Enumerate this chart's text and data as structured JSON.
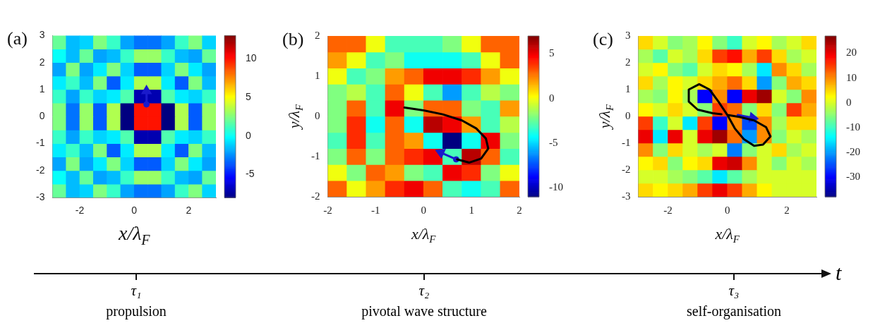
{
  "chart_data": [
    {
      "type": "heatmap",
      "title": "(a)",
      "xlabel": "x/λ$_{F}$",
      "x": [
        -2.75,
        -2.25,
        -1.75,
        -1.25,
        -0.75,
        -0.25,
        0.25,
        0.75,
        1.25,
        1.75,
        2.25,
        2.75
      ],
      "y": [
        2.75,
        2.25,
        1.75,
        1.25,
        0.75,
        0.25,
        -0.25,
        -0.75,
        -1.25,
        -1.75,
        -2.25,
        -2.75
      ],
      "cells": [
        [
          2,
          -1.5,
          -1,
          2.5,
          1,
          -2,
          -3,
          -3,
          -2,
          1,
          2.5,
          -1
        ],
        [
          0,
          -1.5,
          2,
          -2,
          -1.5,
          1,
          3,
          3,
          1,
          -1.5,
          -2,
          2
        ],
        [
          -2,
          2.5,
          -2,
          -0.5,
          2.5,
          -1,
          -3.5,
          -3.5,
          -1,
          2.5,
          -0.5,
          -2
        ],
        [
          -0.5,
          1,
          -1.5,
          2.5,
          -3.5,
          -0.5,
          3.5,
          3.5,
          -0.5,
          -3.5,
          2.5,
          -1.5
        ],
        [
          1,
          -2,
          1,
          -1,
          -0.5,
          1.5,
          -7,
          -7,
          1.5,
          -0.5,
          -1,
          1
        ],
        [
          2.5,
          -3,
          3,
          -3.5,
          3.5,
          -8,
          10,
          10,
          -8,
          3.5,
          -3.5,
          3
        ],
        [
          2.5,
          -3,
          3,
          -3.5,
          3.5,
          -8,
          10,
          10,
          -8,
          3.5,
          -3.5,
          3
        ],
        [
          1,
          -2,
          1,
          -1,
          -0.5,
          1.5,
          -7,
          -7,
          1.5,
          -0.5,
          -1,
          1
        ],
        [
          -0.5,
          1,
          -1.5,
          2.5,
          -3.5,
          -0.5,
          3.5,
          3.5,
          -0.5,
          -3.5,
          2.5,
          -1.5
        ],
        [
          -2,
          2.5,
          -2,
          -0.5,
          2.5,
          -1,
          -3.5,
          -3.5,
          -1,
          2.5,
          -0.5,
          -2
        ],
        [
          0,
          -1.5,
          2,
          -2,
          -1.5,
          1,
          3,
          3,
          1,
          -1.5,
          -2,
          2
        ],
        [
          2,
          -1.5,
          -1,
          2.5,
          1,
          -2,
          -3,
          -3,
          -2,
          1,
          2.5,
          -1
        ]
      ],
      "xlim": [
        -3,
        3
      ],
      "ylim": [
        -3,
        3
      ],
      "xticks": [
        -2,
        0,
        2
      ],
      "yticks": [
        -3,
        -2,
        -1,
        0,
        1,
        2,
        3
      ],
      "clim": [
        -8,
        13
      ],
      "cticks": [
        -5,
        0,
        5,
        10
      ],
      "series": [
        {
          "type": "line",
          "color": "#1a1acc",
          "marker": "triangle",
          "x": [
            0.45,
            0.45
          ],
          "values": [
            0.45,
            0.95
          ]
        },
        {
          "type": "scatter",
          "color": "#1a1acc",
          "marker": "circle",
          "x": [
            0.45
          ],
          "values": [
            0.45
          ]
        }
      ]
    },
    {
      "type": "heatmap",
      "title": "(b)",
      "xlabel": "x/λ$_{F}$",
      "ylabel": "y/λ$_{F}$",
      "x": [
        -1.8,
        -1.4,
        -1,
        -0.6,
        -0.2,
        0.2,
        0.6,
        1,
        1.4,
        1.8
      ],
      "y": [
        1.8,
        1.4,
        1,
        0.6,
        0.2,
        -0.2,
        -0.6,
        -1,
        -1.4,
        -1.8
      ],
      "cells": [
        [
          3,
          3,
          0,
          -3,
          -3,
          -3,
          -2,
          0,
          3,
          3
        ],
        [
          2,
          0,
          -3,
          -2,
          -4,
          -4,
          -4,
          -3,
          0,
          3
        ],
        [
          0,
          -3,
          -2,
          2,
          3,
          5,
          5,
          4,
          2,
          0
        ],
        [
          -2,
          -1,
          -3,
          3,
          0,
          -3,
          -6,
          -3,
          -1,
          -2
        ],
        [
          -2,
          3,
          -3,
          5,
          -2,
          3,
          3,
          -2,
          -3,
          2
        ],
        [
          -2,
          4,
          -4,
          3,
          -4,
          6,
          5,
          2,
          -3,
          -1
        ],
        [
          -3,
          4,
          -3,
          3,
          2,
          -4,
          -11,
          -4,
          5,
          -2
        ],
        [
          -2,
          3,
          -2,
          3,
          4,
          5,
          -3,
          6,
          3,
          -3
        ],
        [
          0,
          -2,
          3,
          2,
          -2,
          -3,
          5,
          4,
          -2,
          0
        ],
        [
          3,
          0,
          2,
          4,
          5,
          3,
          -3,
          -4,
          -3,
          3
        ]
      ],
      "xlim": [
        -2,
        2
      ],
      "ylim": [
        -2,
        2
      ],
      "xticks": [
        -2,
        -1,
        0,
        1,
        2
      ],
      "yticks": [
        -2,
        -1,
        0,
        1,
        2
      ],
      "clim": [
        -11,
        7
      ],
      "cticks": [
        -10,
        -5,
        0,
        5
      ],
      "series": [
        {
          "type": "line",
          "color": "#000000",
          "x": [
            -0.4,
            0,
            0.4,
            0.8,
            1.1,
            1.3,
            1.35,
            1.2,
            0.95,
            0.7
          ],
          "values": [
            0.22,
            0.15,
            0.05,
            -0.1,
            -0.3,
            -0.55,
            -0.8,
            -1.05,
            -1.15,
            -1.07
          ]
        },
        {
          "type": "line",
          "color": "#1a1acc",
          "marker": "triangle",
          "x": [
            0.68,
            0.36
          ],
          "values": [
            -1.07,
            -0.9
          ]
        },
        {
          "type": "scatter",
          "color": "#1a1acc",
          "marker": "circle",
          "x": [
            0.68
          ],
          "values": [
            -1.07
          ]
        }
      ]
    },
    {
      "type": "heatmap",
      "title": "(c)",
      "xlabel": "x/λ$_{F}$",
      "ylabel": "y/λ$_{F}$",
      "x": [
        -2.75,
        -2.25,
        -1.75,
        -1.25,
        -0.75,
        -0.25,
        0.25,
        0.75,
        1.25,
        1.75,
        2.25,
        2.75
      ],
      "y": [
        2.75,
        2.25,
        1.75,
        1.25,
        0.75,
        0.25,
        -0.25,
        -0.75,
        -1.25,
        -1.75,
        -2.25,
        -2.75
      ],
      "cells": [
        [
          5,
          0,
          -5,
          -3,
          3,
          -5,
          -10,
          0,
          3,
          -3,
          0,
          5
        ],
        [
          -3,
          -8,
          0,
          -3,
          5,
          15,
          18,
          8,
          15,
          5,
          -3,
          0
        ],
        [
          0,
          3,
          -5,
          -8,
          0,
          5,
          3,
          -3,
          -15,
          10,
          5,
          -3
        ],
        [
          5,
          -3,
          3,
          0,
          5,
          8,
          12,
          5,
          -20,
          -5,
          8,
          5
        ],
        [
          -3,
          -5,
          3,
          -3,
          -30,
          10,
          -30,
          20,
          25,
          0,
          -5,
          10
        ],
        [
          3,
          0,
          5,
          0,
          -5,
          15,
          12,
          -5,
          5,
          -5,
          15,
          8
        ],
        [
          15,
          -10,
          0,
          -15,
          15,
          -30,
          10,
          -25,
          10,
          -3,
          5,
          5
        ],
        [
          20,
          -15,
          20,
          0,
          20,
          25,
          12,
          -20,
          10,
          -5,
          0,
          -3
        ],
        [
          10,
          -5,
          5,
          0,
          -3,
          0,
          -22,
          -5,
          0,
          5,
          -3,
          0
        ],
        [
          3,
          5,
          -5,
          3,
          5,
          20,
          22,
          10,
          0,
          -5,
          0,
          -3
        ],
        [
          0,
          0,
          -3,
          -5,
          -8,
          -15,
          -8,
          -3,
          0,
          0,
          0,
          0
        ],
        [
          5,
          3,
          5,
          8,
          15,
          20,
          15,
          8,
          3,
          0,
          0,
          0
        ]
      ],
      "xlim": [
        -3,
        3
      ],
      "ylim": [
        -3,
        3
      ],
      "xticks": [
        -2,
        0,
        2
      ],
      "yticks": [
        -3,
        -2,
        -1,
        0,
        1,
        2,
        3
      ],
      "clim": [
        -38,
        27
      ],
      "cticks": [
        -30,
        -20,
        -10,
        0,
        10,
        20
      ],
      "series": [
        {
          "type": "line",
          "color": "#000000",
          "x": [
            0,
            0.4,
            0.9,
            1.3,
            1.45,
            1.2,
            0.9,
            0.55,
            0.25,
            0,
            -0.3,
            -0.6,
            -0.95,
            -1.3,
            -1.3,
            -1.0,
            -0.5,
            -0.2
          ],
          "values": [
            0.05,
            -0.02,
            -0.15,
            -0.4,
            -0.75,
            -1.05,
            -1.1,
            -0.85,
            -0.45,
            0.05,
            0.55,
            1.0,
            1.2,
            1.0,
            0.55,
            0.25,
            0.12,
            0.08
          ]
        },
        {
          "type": "line",
          "color": "#1a1acc",
          "marker": "triangle",
          "x": [
            0.35,
            0.85
          ],
          "values": [
            0.05,
            -0.05
          ]
        }
      ]
    },
    {
      "type": "other",
      "xlabel": "t",
      "categories": [
        "τ₁",
        "τ₂",
        "τ₃"
      ],
      "annotations": [
        "propulsion",
        "pivotal wave structure",
        "self-organisation"
      ]
    }
  ]
}
